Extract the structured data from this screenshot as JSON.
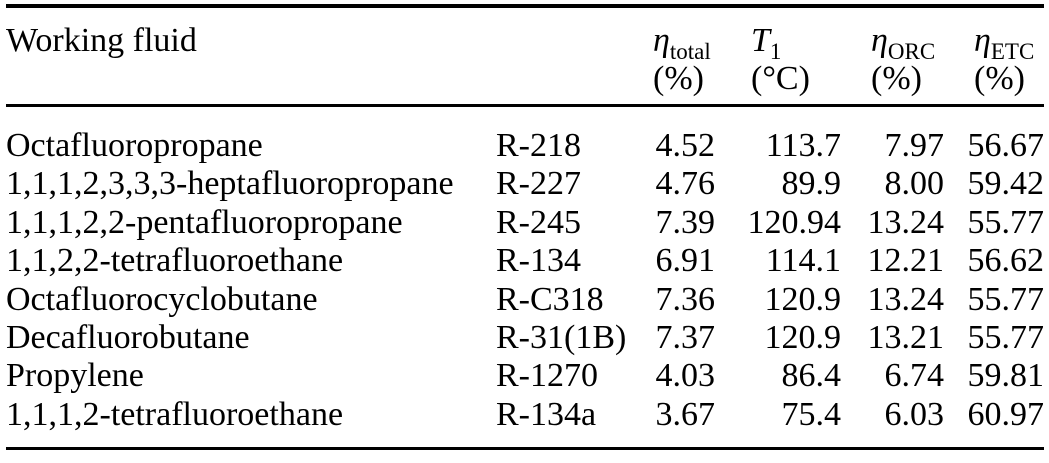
{
  "page": {
    "background": "#ffffff",
    "text_color": "#000000",
    "rule_color": "#000000"
  },
  "table": {
    "header": {
      "working_fluid": "Working fluid",
      "code_header": "",
      "eta_total": {
        "symbol": "η",
        "sub": "total",
        "unit": "(%)"
      },
      "t1": {
        "symbol": "T",
        "sub": "1",
        "unit": "(°C)"
      },
      "eta_orc": {
        "symbol": "η",
        "sub": "ORC",
        "unit": "(%)"
      },
      "eta_etc": {
        "symbol": "η",
        "sub": "ETC",
        "unit": "(%)"
      }
    },
    "rows": [
      {
        "name": "Octafluoropropane",
        "code": "R-218",
        "eta_total": "4.52",
        "t1": "113.7",
        "eta_orc": "7.97",
        "eta_etc": "56.67"
      },
      {
        "name": "1,1,1,2,3,3,3-heptafluoropropane",
        "code": "R-227",
        "eta_total": "4.76",
        "t1": "89.9",
        "eta_orc": "8.00",
        "eta_etc": "59.42"
      },
      {
        "name": "1,1,1,2,2-pentafluoropropane",
        "code": "R-245",
        "eta_total": "7.39",
        "t1": "120.94",
        "eta_orc": "13.24",
        "eta_etc": "55.77"
      },
      {
        "name": "1,1,2,2-tetrafluoroethane",
        "code": "R-134",
        "eta_total": "6.91",
        "t1": "114.1",
        "eta_orc": "12.21",
        "eta_etc": "56.62"
      },
      {
        "name": "Octafluorocyclobutane",
        "code": "R-C318",
        "eta_total": "7.36",
        "t1": "120.9",
        "eta_orc": "13.24",
        "eta_etc": "55.77"
      },
      {
        "name": "Decafluorobutane",
        "code": "R-31(1B)",
        "eta_total": "7.37",
        "t1": "120.9",
        "eta_orc": "13.21",
        "eta_etc": "55.77"
      },
      {
        "name": "Propylene",
        "code": "R-1270",
        "eta_total": "4.03",
        "t1": "86.4",
        "eta_orc": "6.74",
        "eta_etc": "59.81"
      },
      {
        "name": "1,1,1,2-tetrafluoroethane",
        "code": "R-134a",
        "eta_total": "3.67",
        "t1": "75.4",
        "eta_orc": "6.03",
        "eta_etc": "60.97"
      }
    ]
  },
  "chart_data": {
    "type": "table",
    "columns": [
      "Working fluid",
      "",
      "η_total (%)",
      "T_1 (°C)",
      "η_ORC (%)",
      "η_ETC (%)"
    ],
    "rows": [
      [
        "Octafluoropropane",
        "R-218",
        4.52,
        113.7,
        7.97,
        56.67
      ],
      [
        "1,1,1,2,3,3,3-heptafluoropropane",
        "R-227",
        4.76,
        89.9,
        8.0,
        59.42
      ],
      [
        "1,1,1,2,2-pentafluoropropane",
        "R-245",
        7.39,
        120.94,
        13.24,
        55.77
      ],
      [
        "1,1,2,2-tetrafluoroethane",
        "R-134",
        6.91,
        114.1,
        12.21,
        56.62
      ],
      [
        "Octafluorocyclobutane",
        "R-C318",
        7.36,
        120.9,
        13.24,
        55.77
      ],
      [
        "Decafluorobutane",
        "R-31(1B)",
        7.37,
        120.9,
        13.21,
        55.77
      ],
      [
        "Propylene",
        "R-1270",
        4.03,
        86.4,
        6.74,
        59.81
      ],
      [
        "1,1,1,2-tetrafluoroethane",
        "R-134a",
        3.67,
        75.4,
        6.03,
        60.97
      ]
    ]
  }
}
